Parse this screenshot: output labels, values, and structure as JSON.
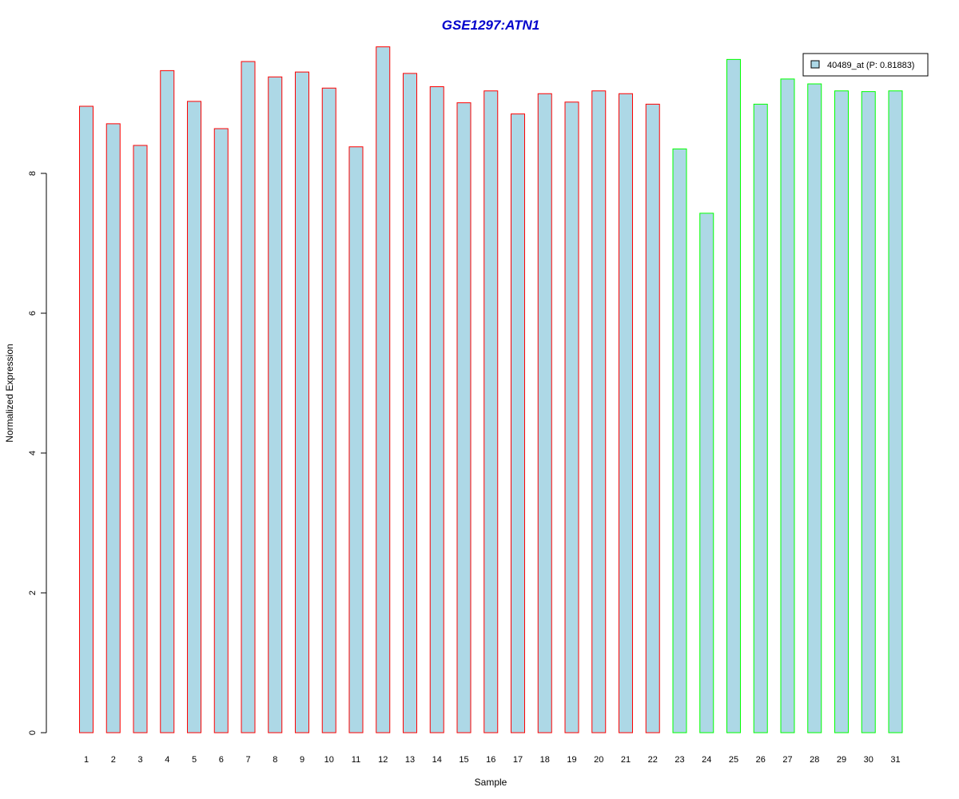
{
  "chart_data": {
    "type": "bar",
    "title": "GSE1297:ATN1",
    "xlabel": "Sample",
    "ylabel": "Normalized Expression",
    "ylim": [
      0,
      9.8
    ],
    "y_ticks": [
      "0",
      "2",
      "4",
      "6",
      "8"
    ],
    "grid": false,
    "legend_position": "top-right",
    "colors": {
      "title": "#0000cc",
      "bar_fill": "#add8e6",
      "group1_border": "#ff0000",
      "group2_border": "#00ff00"
    },
    "categories": [
      "1",
      "2",
      "3",
      "4",
      "5",
      "6",
      "7",
      "8",
      "9",
      "10",
      "11",
      "12",
      "13",
      "14",
      "15",
      "16",
      "17",
      "18",
      "19",
      "20",
      "21",
      "22",
      "23",
      "24",
      "25",
      "26",
      "27",
      "28",
      "29",
      "30",
      "31"
    ],
    "series": [
      {
        "name": "40489_at (P: 0.81883)",
        "values": [
          8.96,
          8.71,
          8.4,
          9.47,
          9.03,
          8.64,
          9.6,
          9.38,
          9.45,
          9.22,
          8.38,
          9.81,
          9.43,
          9.24,
          9.01,
          9.18,
          8.85,
          9.14,
          9.02,
          9.18,
          9.14,
          8.99,
          8.35,
          7.43,
          9.63,
          8.99,
          9.35,
          9.28,
          9.18,
          9.17,
          9.18
        ]
      }
    ],
    "groups": [
      1,
      1,
      1,
      1,
      1,
      1,
      1,
      1,
      1,
      1,
      1,
      1,
      1,
      1,
      1,
      1,
      1,
      1,
      1,
      1,
      1,
      1,
      2,
      2,
      2,
      2,
      2,
      2,
      2,
      2,
      2
    ]
  }
}
